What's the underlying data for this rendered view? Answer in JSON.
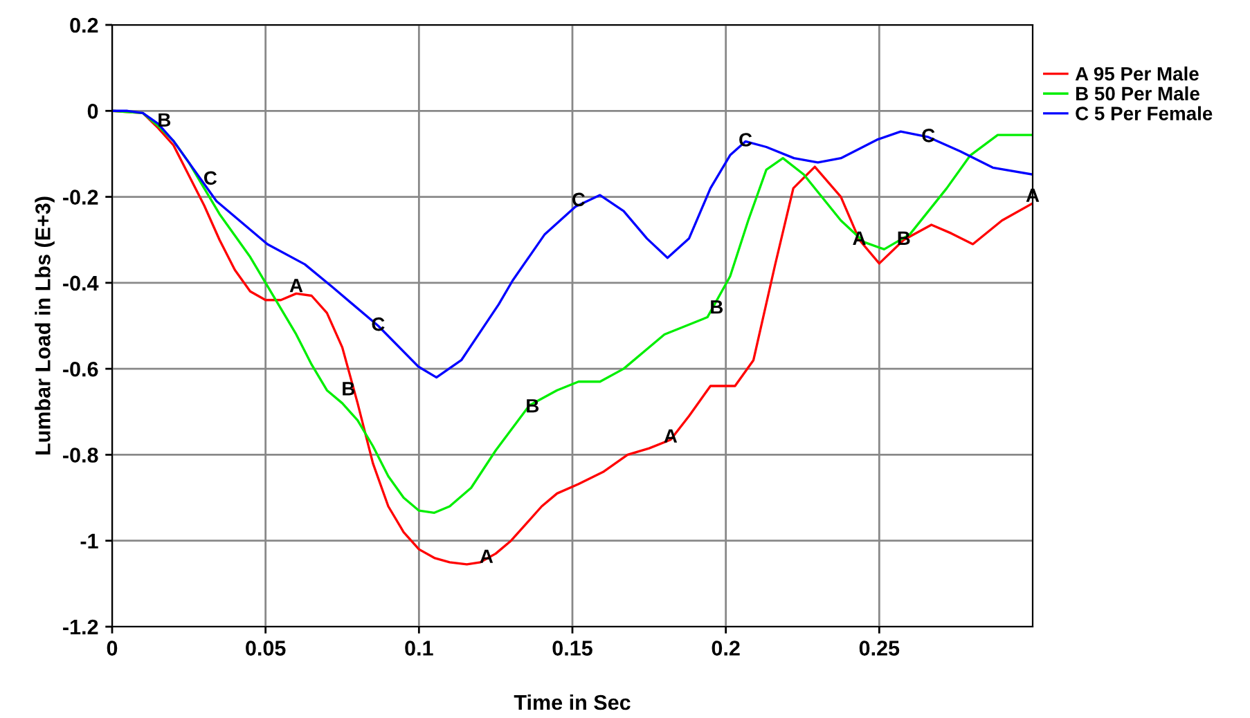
{
  "chart_data": {
    "type": "line",
    "xlabel": "Time in Sec",
    "ylabel": "Lumbar Load in Lbs (E+3)",
    "xlim": [
      0,
      0.3
    ],
    "ylim": [
      -1.2,
      0.2
    ],
    "xticks": [
      0,
      0.05,
      0.1,
      0.15,
      0.2,
      0.25
    ],
    "yticks": [
      -1.2,
      -1,
      -0.8,
      -0.6,
      -0.4,
      -0.2,
      0,
      0.2
    ],
    "grid": true,
    "legend": "right",
    "line_style": "solid",
    "series": [
      {
        "name": "A 95 Per Male",
        "color": "#ff0000",
        "x": [
          0,
          0.01,
          0.015,
          0.02,
          0.025,
          0.03,
          0.035,
          0.04,
          0.045,
          0.05,
          0.055,
          0.06,
          0.065,
          0.07,
          0.075,
          0.08,
          0.085,
          0.09,
          0.095,
          0.1,
          0.105,
          0.11,
          0.1156,
          0.12,
          0.125,
          0.13,
          0.135,
          0.14,
          0.145,
          0.152,
          0.16,
          0.168,
          0.175,
          0.182,
          0.188,
          0.195,
          0.203,
          0.209,
          0.216,
          0.222,
          0.229,
          0.2375,
          0.2435,
          0.25,
          0.258,
          0.267,
          0.2735,
          0.2805,
          0.29,
          0.3
        ],
        "values": [
          0,
          -0.005,
          -0.04,
          -0.08,
          -0.15,
          -0.22,
          -0.3,
          -0.37,
          -0.42,
          -0.44,
          -0.44,
          -0.425,
          -0.43,
          -0.47,
          -0.55,
          -0.68,
          -0.82,
          -0.92,
          -0.98,
          -1.02,
          -1.04,
          -1.05,
          -1.055,
          -1.05,
          -1.03,
          -1.0,
          -0.96,
          -0.92,
          -0.89,
          -0.868,
          -0.84,
          -0.8,
          -0.785,
          -0.765,
          -0.71,
          -0.64,
          -0.64,
          -0.58,
          -0.36,
          -0.18,
          -0.13,
          -0.2,
          -0.3,
          -0.355,
          -0.3,
          -0.265,
          -0.285,
          -0.31,
          -0.255,
          -0.215
        ]
      },
      {
        "name": "B 50 Per Male",
        "color": "#00ee00",
        "x": [
          0,
          0.01,
          0.015,
          0.02,
          0.025,
          0.03,
          0.035,
          0.04,
          0.045,
          0.05,
          0.055,
          0.06,
          0.065,
          0.07,
          0.075,
          0.08,
          0.085,
          0.09,
          0.095,
          0.1,
          0.105,
          0.11,
          0.117,
          0.125,
          0.136,
          0.145,
          0.152,
          0.159,
          0.1667,
          0.18,
          0.194,
          0.2014,
          0.2073,
          0.2132,
          0.2186,
          0.2254,
          0.2375,
          0.245,
          0.2516,
          0.26,
          0.272,
          0.2796,
          0.2886,
          0.3
        ],
        "values": [
          0,
          -0.005,
          -0.035,
          -0.07,
          -0.12,
          -0.18,
          -0.24,
          -0.29,
          -0.34,
          -0.4,
          -0.46,
          -0.52,
          -0.59,
          -0.65,
          -0.68,
          -0.72,
          -0.78,
          -0.85,
          -0.9,
          -0.93,
          -0.935,
          -0.92,
          -0.877,
          -0.79,
          -0.685,
          -0.65,
          -0.63,
          -0.63,
          -0.6,
          -0.52,
          -0.48,
          -0.385,
          -0.255,
          -0.137,
          -0.11,
          -0.148,
          -0.255,
          -0.305,
          -0.322,
          -0.287,
          -0.18,
          -0.104,
          -0.056,
          -0.056
        ]
      },
      {
        "name": "C 5 Per Female",
        "color": "#0000ff",
        "x": [
          0,
          0.005,
          0.01,
          0.015,
          0.02,
          0.025,
          0.034,
          0.0506,
          0.0628,
          0.0718,
          0.0867,
          0.0998,
          0.1057,
          0.1138,
          0.126,
          0.1305,
          0.141,
          0.151,
          0.159,
          0.1667,
          0.1743,
          0.181,
          0.188,
          0.195,
          0.2014,
          0.2064,
          0.2132,
          0.2222,
          0.23,
          0.2375,
          0.2493,
          0.257,
          0.266,
          0.2764,
          0.287,
          0.3
        ],
        "values": [
          0,
          0,
          -0.005,
          -0.03,
          -0.07,
          -0.12,
          -0.21,
          -0.31,
          -0.357,
          -0.41,
          -0.5,
          -0.595,
          -0.62,
          -0.58,
          -0.45,
          -0.395,
          -0.287,
          -0.223,
          -0.196,
          -0.233,
          -0.297,
          -0.342,
          -0.297,
          -0.18,
          -0.103,
          -0.071,
          -0.084,
          -0.11,
          -0.12,
          -0.11,
          -0.067,
          -0.048,
          -0.061,
          -0.094,
          -0.132,
          -0.148
        ]
      }
    ],
    "annotations": [
      {
        "text": "A",
        "x": 0.06,
        "y": -0.41
      },
      {
        "text": "A",
        "x": 0.122,
        "y": -1.04
      },
      {
        "text": "A",
        "x": 0.182,
        "y": -0.76
      },
      {
        "text": "A",
        "x": 0.2435,
        "y": -0.3
      },
      {
        "text": "A",
        "x": 0.3,
        "y": -0.2
      },
      {
        "text": "B",
        "x": 0.017,
        "y": -0.025
      },
      {
        "text": "B",
        "x": 0.077,
        "y": -0.65
      },
      {
        "text": "B",
        "x": 0.137,
        "y": -0.69
      },
      {
        "text": "B",
        "x": 0.197,
        "y": -0.46
      },
      {
        "text": "B",
        "x": 0.258,
        "y": -0.3
      },
      {
        "text": "C",
        "x": 0.032,
        "y": -0.16
      },
      {
        "text": "C",
        "x": 0.0867,
        "y": -0.5
      },
      {
        "text": "C",
        "x": 0.152,
        "y": -0.21
      },
      {
        "text": "C",
        "x": 0.2064,
        "y": -0.071
      },
      {
        "text": "C",
        "x": 0.266,
        "y": -0.061
      }
    ]
  }
}
